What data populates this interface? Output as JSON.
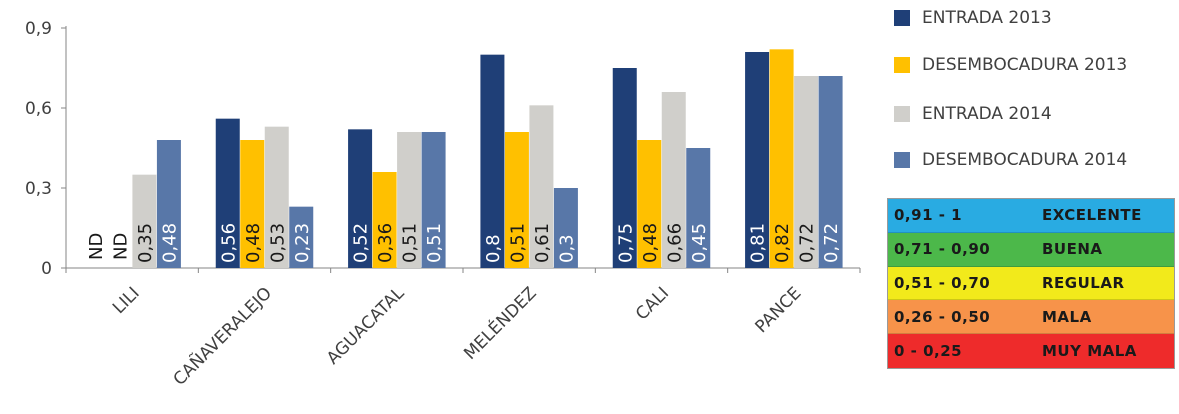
{
  "chart_data": {
    "type": "bar",
    "categories": [
      "LILI",
      "CAÑAVERALEJO",
      "AGUACATAL",
      "MELÉNDEZ",
      "CALI",
      "PANCE"
    ],
    "series": [
      {
        "name": "ENTRADA 2013",
        "color": "#1f3f77",
        "values": [
          null,
          0.56,
          0.52,
          0.8,
          0.75,
          0.81
        ],
        "labels": [
          "ND",
          "0,56",
          "0,52",
          "0,8",
          "0,75",
          "0,81"
        ]
      },
      {
        "name": "DESEMBOCADURA 2013",
        "color": "#ffc000",
        "values": [
          null,
          0.48,
          0.36,
          0.51,
          0.48,
          0.82
        ],
        "labels": [
          "ND",
          "0,48",
          "0,36",
          "0,51",
          "0,48",
          "0,82"
        ]
      },
      {
        "name": "ENTRADA 2014",
        "color": "#d0cfcb",
        "values": [
          0.35,
          0.53,
          0.51,
          0.61,
          0.66,
          0.72
        ],
        "labels": [
          "0,35",
          "0,53",
          "0,51",
          "0,61",
          "0,66",
          "0,72"
        ]
      },
      {
        "name": "DESEMBOCADURA 2014",
        "color": "#5877a8",
        "values": [
          0.48,
          0.23,
          0.51,
          0.3,
          0.45,
          0.72
        ],
        "labels": [
          "0,48",
          "0,23",
          "0,51",
          "0,3",
          "0,45",
          "0,72"
        ]
      }
    ],
    "ylim": [
      0,
      0.9
    ],
    "yticks": [
      "0",
      "0,3",
      "0,6",
      "0,9"
    ],
    "ytick_values": [
      0,
      0.3,
      0.6,
      0.9
    ],
    "grid": false,
    "legend_position": "right"
  },
  "scale_table": [
    {
      "range": "0,91 - 1",
      "label": "EXCELENTE",
      "color": "#29abe2"
    },
    {
      "range": "0,71 - 0,90",
      "label": "BUENA",
      "color": "#4cb84a"
    },
    {
      "range": "0,51 - 0,70",
      "label": "REGULAR",
      "color": "#f2ea1b"
    },
    {
      "range": "0,26 - 0,50",
      "label": "MALA",
      "color": "#f7934a"
    },
    {
      "range": "0 - 0,25",
      "label": "MUY MALA",
      "color": "#ee2b2b"
    }
  ]
}
